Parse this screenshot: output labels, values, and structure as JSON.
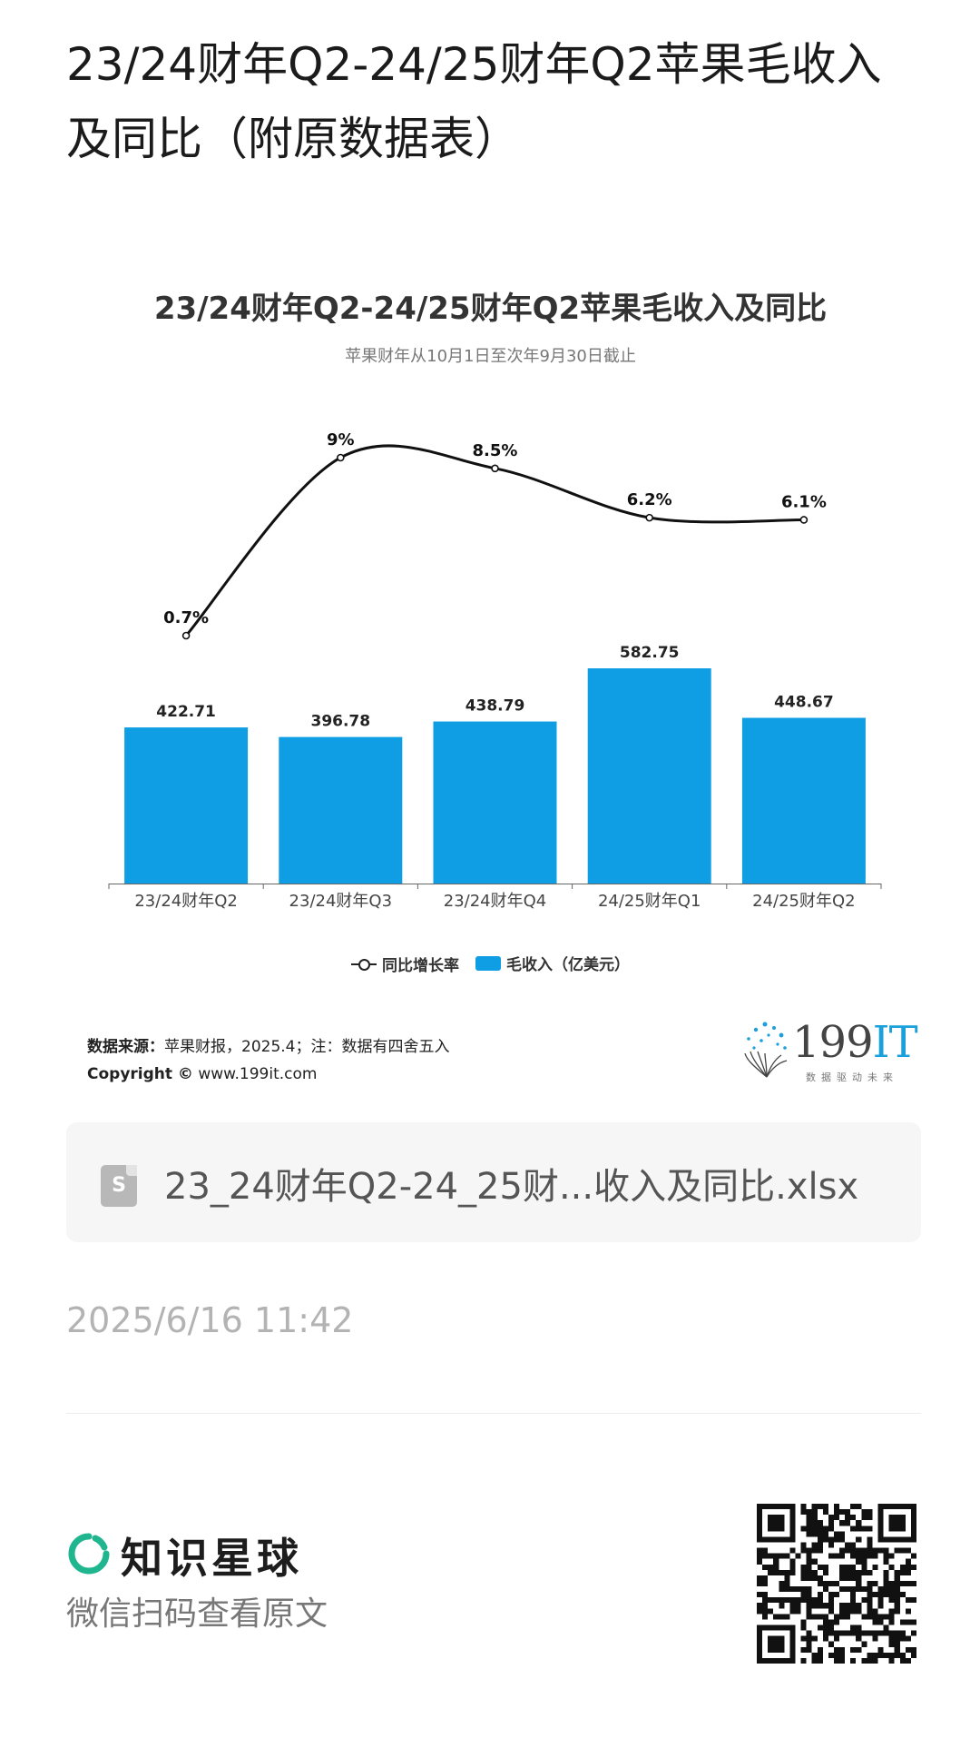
{
  "post": {
    "title": "23/24财年Q2-24/25财年Q2苹果毛收入及同比（附原数据表）",
    "attachment": "23_24财年Q2-24_25财...收入及同比.xlsx",
    "timestamp": "2025/6/16 11:42"
  },
  "chart_data": {
    "type": "bar",
    "title": "23/24财年Q2-24/25财年Q2苹果毛收入及同比",
    "subtitle": "苹果财年从10月1日至次年9月30日截止",
    "categories": [
      "23/24财年Q2",
      "23/24财年Q3",
      "23/24财年Q4",
      "24/25财年Q1",
      "24/25财年Q2"
    ],
    "series": [
      {
        "name": "毛收入（亿美元）",
        "type": "bar",
        "values": [
          422.71,
          396.78,
          438.79,
          582.75,
          448.67
        ],
        "labels": [
          "422.71",
          "396.78",
          "438.79",
          "582.75",
          "448.67"
        ],
        "color": "#0f9ee3"
      },
      {
        "name": "同比增长率",
        "type": "line",
        "values": [
          0.7,
          9,
          8.5,
          6.2,
          6.1
        ],
        "labels": [
          "0.7%",
          "9%",
          "8.5%",
          "6.2%",
          "6.1%"
        ],
        "color": "#111111"
      }
    ],
    "legend": {
      "position": "bottom-center"
    },
    "grid": false
  },
  "source": {
    "label": "数据来源：",
    "text": "苹果财报，2025.4；注：数据有四舍五入",
    "copyright_label": "Copyright ©",
    "copyright_url": "www.199it.com"
  },
  "brand": {
    "num": "199",
    "it": "IT",
    "tag": "数据驱动未来"
  },
  "footer": {
    "app_name": "知识星球",
    "scan_hint": "微信扫码查看原文"
  },
  "icons": {
    "file": "sheet-file-icon",
    "planet": "zsxq-logo-icon",
    "qr": "qr-code-icon"
  },
  "colors": {
    "bar": "#0f9ee3",
    "planet_green": "#1fb58f",
    "brand_blue": "#1aa0dc"
  }
}
